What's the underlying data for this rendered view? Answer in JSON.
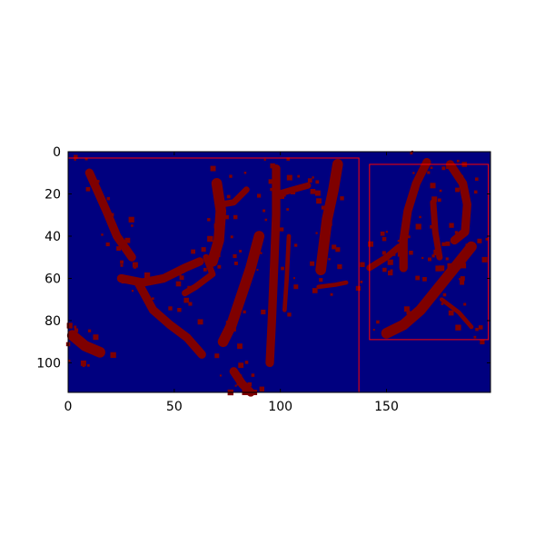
{
  "chart_data": {
    "type": "heatmap",
    "title": "",
    "xlabel": "",
    "ylabel": "",
    "xlim": [
      0,
      199
    ],
    "ylim": [
      114,
      0
    ],
    "x_ticks": [
      0,
      50,
      100,
      150
    ],
    "y_ticks": [
      0,
      20,
      40,
      60,
      80,
      100
    ],
    "x_tick_labels": [
      "0",
      "50",
      "100",
      "150"
    ],
    "y_tick_labels": [
      "0",
      "20",
      "40",
      "60",
      "80",
      "100"
    ],
    "grid": false,
    "legend": "none",
    "colormap": {
      "background": "#00007f",
      "foreground": "#7f0000",
      "box": "#ff0000"
    },
    "boxes": [
      {
        "x0": 0,
        "y0": 3,
        "x1": 137,
        "y1": 114
      },
      {
        "x0": 142,
        "y0": 6,
        "x1": 198,
        "y1": 89
      }
    ],
    "strokes": [
      {
        "points": [
          [
            10,
            10
          ],
          [
            18,
            28
          ],
          [
            23,
            40
          ],
          [
            30,
            50
          ]
        ],
        "w": 4
      },
      {
        "points": [
          [
            25,
            60
          ],
          [
            35,
            62
          ],
          [
            45,
            60
          ],
          [
            55,
            55
          ],
          [
            62,
            52
          ]
        ],
        "w": 4
      },
      {
        "points": [
          [
            33,
            62
          ],
          [
            40,
            75
          ],
          [
            48,
            82
          ],
          [
            56,
            88
          ],
          [
            63,
            96
          ]
        ],
        "w": 4
      },
      {
        "points": [
          [
            65,
            50
          ],
          [
            68,
            58
          ],
          [
            60,
            64
          ],
          [
            55,
            67
          ]
        ],
        "w": 3
      },
      {
        "points": [
          [
            70,
            15
          ],
          [
            72,
            28
          ],
          [
            71,
            42
          ],
          [
            68,
            52
          ]
        ],
        "w": 5
      },
      {
        "points": [
          [
            72,
            25
          ],
          [
            78,
            24
          ],
          [
            84,
            18
          ]
        ],
        "w": 3
      },
      {
        "points": [
          [
            90,
            40
          ],
          [
            86,
            55
          ],
          [
            81,
            70
          ],
          [
            77,
            82
          ],
          [
            73,
            90
          ]
        ],
        "w": 5
      },
      {
        "points": [
          [
            98,
            8
          ],
          [
            98,
            30
          ],
          [
            97,
            55
          ],
          [
            96,
            80
          ],
          [
            95,
            100
          ]
        ],
        "w": 4
      },
      {
        "points": [
          [
            99,
            20
          ],
          [
            106,
            18
          ],
          [
            113,
            16
          ]
        ],
        "w": 3
      },
      {
        "points": [
          [
            104,
            40
          ],
          [
            103,
            60
          ],
          [
            102,
            75
          ]
        ],
        "w": 2
      },
      {
        "points": [
          [
            127,
            6
          ],
          [
            125,
            18
          ],
          [
            122,
            32
          ],
          [
            120,
            48
          ],
          [
            119,
            56
          ]
        ],
        "w": 5
      },
      {
        "points": [
          [
            118,
            64
          ],
          [
            126,
            63
          ],
          [
            131,
            62
          ]
        ],
        "w": 2
      },
      {
        "points": [
          [
            2,
            87
          ],
          [
            8,
            92
          ],
          [
            15,
            95
          ]
        ],
        "w": 5
      },
      {
        "points": [
          [
            78,
            104
          ],
          [
            82,
            110
          ],
          [
            86,
            114
          ]
        ],
        "w": 4
      },
      {
        "points": [
          [
            142,
            55
          ],
          [
            150,
            50
          ],
          [
            156,
            45
          ]
        ],
        "w": 3
      },
      {
        "points": [
          [
            158,
            55
          ],
          [
            158,
            42
          ],
          [
            160,
            28
          ],
          [
            164,
            15
          ],
          [
            169,
            5
          ]
        ],
        "w": 4
      },
      {
        "points": [
          [
            180,
            6
          ],
          [
            186,
            15
          ],
          [
            188,
            25
          ],
          [
            187,
            38
          ],
          [
            182,
            42
          ]
        ],
        "w": 4
      },
      {
        "points": [
          [
            172,
            24
          ],
          [
            173,
            38
          ],
          [
            175,
            50
          ]
        ],
        "w": 3
      },
      {
        "points": [
          [
            150,
            86
          ],
          [
            158,
            82
          ],
          [
            166,
            75
          ],
          [
            174,
            65
          ],
          [
            182,
            55
          ],
          [
            190,
            45
          ]
        ],
        "w": 5
      },
      {
        "points": [
          [
            176,
            70
          ],
          [
            184,
            76
          ],
          [
            190,
            83
          ]
        ],
        "w": 2
      }
    ]
  }
}
